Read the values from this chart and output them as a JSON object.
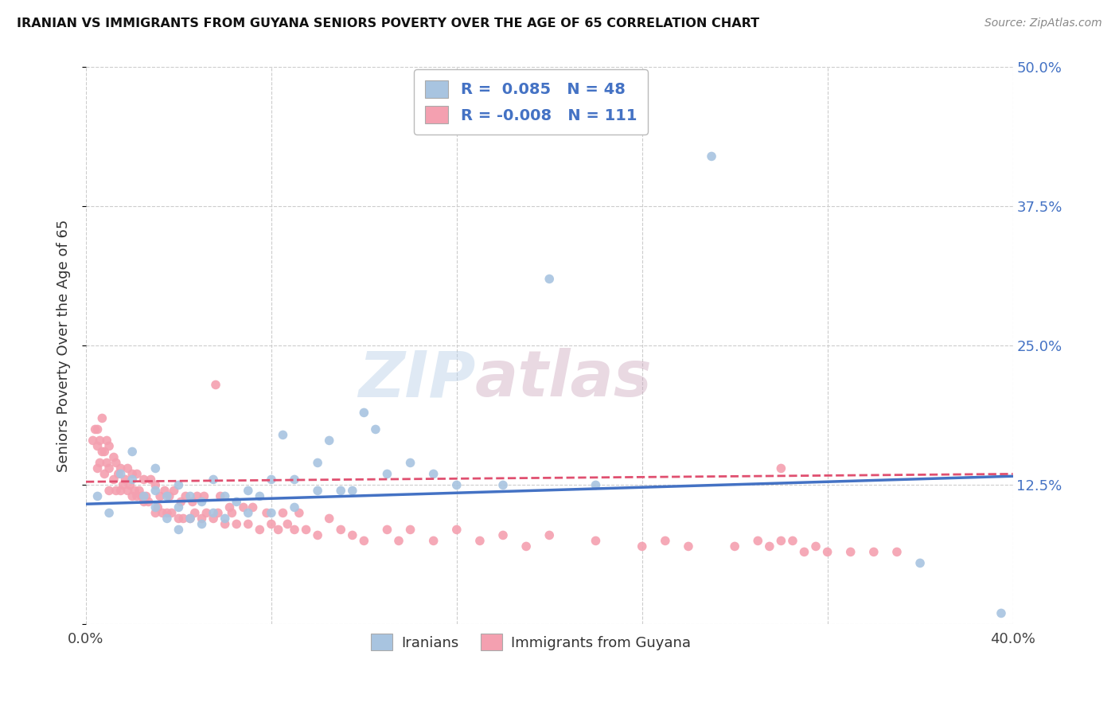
{
  "title": "IRANIAN VS IMMIGRANTS FROM GUYANA SENIORS POVERTY OVER THE AGE OF 65 CORRELATION CHART",
  "source": "Source: ZipAtlas.com",
  "ylabel": "Seniors Poverty Over the Age of 65",
  "xlim": [
    0.0,
    0.4
  ],
  "ylim": [
    0.0,
    0.5
  ],
  "yticks": [
    0.0,
    0.125,
    0.25,
    0.375,
    0.5
  ],
  "xtick_positions": [
    0.0,
    0.08,
    0.16,
    0.24,
    0.32,
    0.4
  ],
  "xtick_labels": [
    "0.0%",
    "",
    "",
    "",
    "",
    "40.0%"
  ],
  "legend_iranian_R": "0.085",
  "legend_iranian_N": "48",
  "legend_guyana_R": "-0.008",
  "legend_guyana_N": "111",
  "color_iranian": "#a8c4e0",
  "color_guyana": "#f4a0b0",
  "color_iranian_line": "#4472c4",
  "color_guyana_line": "#e05070",
  "color_axis_labels": "#4472c4",
  "watermark_zip": "ZIP",
  "watermark_atlas": "atlas",
  "background_color": "#ffffff",
  "grid_color": "#cccccc",
  "iranian_x": [
    0.005,
    0.01,
    0.015,
    0.02,
    0.02,
    0.025,
    0.03,
    0.03,
    0.03,
    0.035,
    0.035,
    0.04,
    0.04,
    0.04,
    0.045,
    0.045,
    0.05,
    0.05,
    0.055,
    0.055,
    0.06,
    0.06,
    0.065,
    0.07,
    0.07,
    0.075,
    0.08,
    0.08,
    0.085,
    0.09,
    0.09,
    0.1,
    0.1,
    0.105,
    0.11,
    0.115,
    0.12,
    0.125,
    0.13,
    0.14,
    0.15,
    0.16,
    0.18,
    0.2,
    0.22,
    0.27,
    0.36,
    0.395
  ],
  "iranian_y": [
    0.115,
    0.1,
    0.135,
    0.13,
    0.155,
    0.115,
    0.105,
    0.12,
    0.14,
    0.095,
    0.115,
    0.085,
    0.105,
    0.125,
    0.095,
    0.115,
    0.09,
    0.11,
    0.1,
    0.13,
    0.095,
    0.115,
    0.11,
    0.1,
    0.12,
    0.115,
    0.1,
    0.13,
    0.17,
    0.105,
    0.13,
    0.12,
    0.145,
    0.165,
    0.12,
    0.12,
    0.19,
    0.175,
    0.135,
    0.145,
    0.135,
    0.125,
    0.125,
    0.31,
    0.125,
    0.42,
    0.055,
    0.01
  ],
  "guyana_x": [
    0.003,
    0.004,
    0.005,
    0.005,
    0.005,
    0.006,
    0.006,
    0.007,
    0.007,
    0.008,
    0.008,
    0.009,
    0.009,
    0.01,
    0.01,
    0.01,
    0.012,
    0.012,
    0.013,
    0.013,
    0.014,
    0.015,
    0.015,
    0.016,
    0.017,
    0.018,
    0.018,
    0.019,
    0.02,
    0.02,
    0.021,
    0.022,
    0.022,
    0.023,
    0.024,
    0.025,
    0.025,
    0.026,
    0.027,
    0.028,
    0.03,
    0.03,
    0.031,
    0.032,
    0.033,
    0.034,
    0.035,
    0.036,
    0.037,
    0.038,
    0.04,
    0.041,
    0.042,
    0.043,
    0.045,
    0.046,
    0.047,
    0.048,
    0.05,
    0.051,
    0.052,
    0.055,
    0.056,
    0.057,
    0.058,
    0.06,
    0.062,
    0.063,
    0.065,
    0.068,
    0.07,
    0.072,
    0.075,
    0.078,
    0.08,
    0.083,
    0.085,
    0.087,
    0.09,
    0.092,
    0.095,
    0.1,
    0.105,
    0.11,
    0.115,
    0.12,
    0.13,
    0.135,
    0.14,
    0.15,
    0.16,
    0.17,
    0.18,
    0.19,
    0.2,
    0.22,
    0.24,
    0.25,
    0.26,
    0.28,
    0.29,
    0.295,
    0.3,
    0.3,
    0.305,
    0.31,
    0.315,
    0.32,
    0.33,
    0.34,
    0.35
  ],
  "guyana_y": [
    0.165,
    0.175,
    0.14,
    0.16,
    0.175,
    0.145,
    0.165,
    0.155,
    0.185,
    0.135,
    0.155,
    0.145,
    0.165,
    0.12,
    0.14,
    0.16,
    0.13,
    0.15,
    0.12,
    0.145,
    0.135,
    0.12,
    0.14,
    0.125,
    0.13,
    0.12,
    0.14,
    0.125,
    0.115,
    0.135,
    0.12,
    0.115,
    0.135,
    0.12,
    0.115,
    0.11,
    0.13,
    0.115,
    0.11,
    0.13,
    0.1,
    0.125,
    0.105,
    0.115,
    0.1,
    0.12,
    0.1,
    0.115,
    0.1,
    0.12,
    0.095,
    0.11,
    0.095,
    0.115,
    0.095,
    0.11,
    0.1,
    0.115,
    0.095,
    0.115,
    0.1,
    0.095,
    0.215,
    0.1,
    0.115,
    0.09,
    0.105,
    0.1,
    0.09,
    0.105,
    0.09,
    0.105,
    0.085,
    0.1,
    0.09,
    0.085,
    0.1,
    0.09,
    0.085,
    0.1,
    0.085,
    0.08,
    0.095,
    0.085,
    0.08,
    0.075,
    0.085,
    0.075,
    0.085,
    0.075,
    0.085,
    0.075,
    0.08,
    0.07,
    0.08,
    0.075,
    0.07,
    0.075,
    0.07,
    0.07,
    0.075,
    0.07,
    0.14,
    0.075,
    0.075,
    0.065,
    0.07,
    0.065,
    0.065,
    0.065,
    0.065
  ]
}
